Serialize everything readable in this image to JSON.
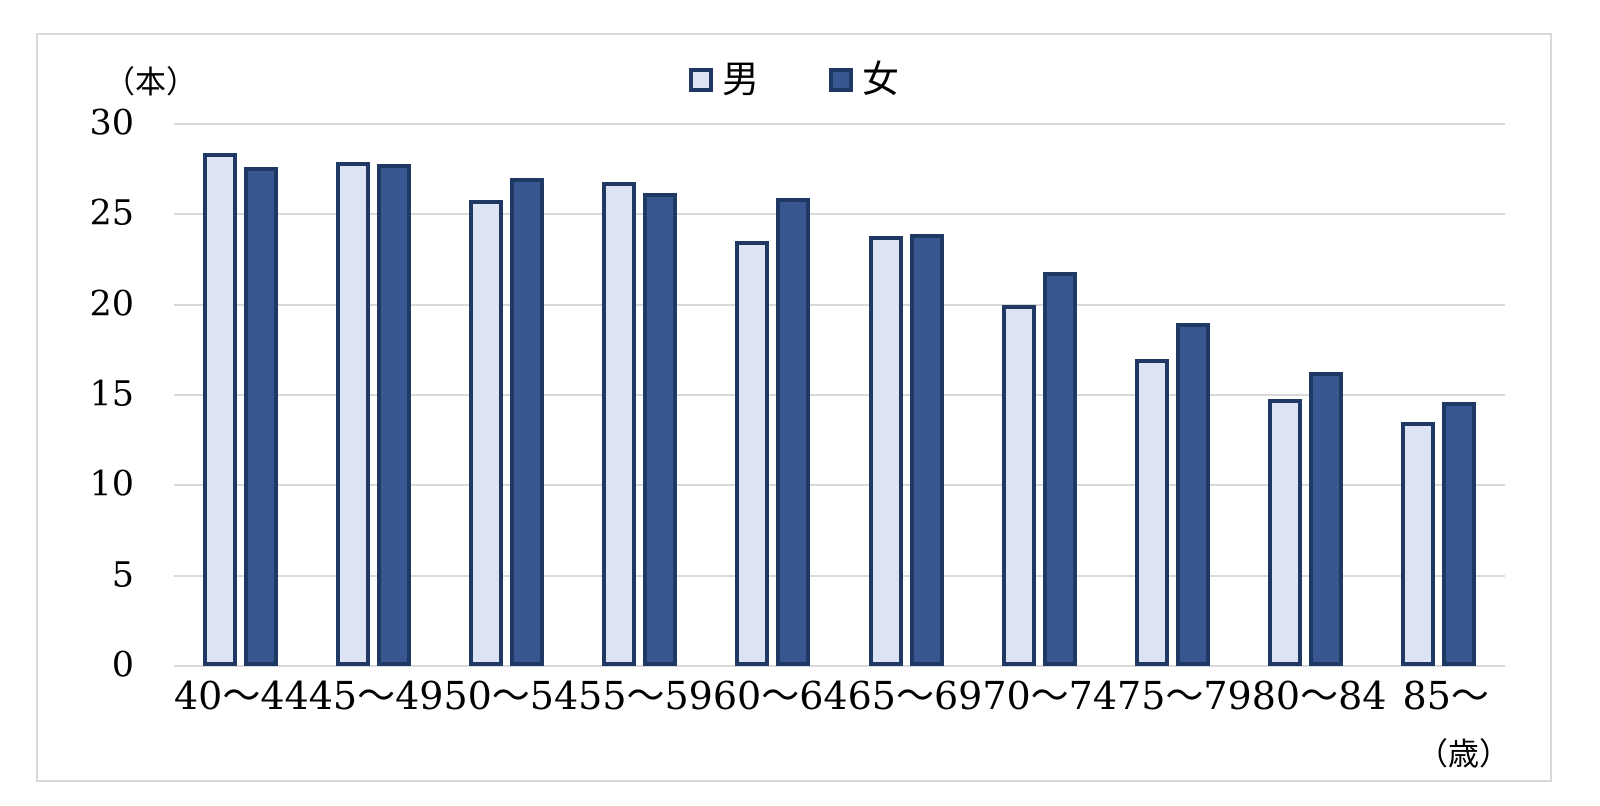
{
  "chart_data": {
    "type": "bar",
    "title": "",
    "y_unit_label": "（本）",
    "x_unit_label": "（歳）",
    "categories": [
      "40〜44",
      "45〜49",
      "50〜54",
      "55〜59",
      "60〜64",
      "65〜69",
      "70〜74",
      "75〜79",
      "80〜84",
      "85〜"
    ],
    "series": [
      {
        "name": "男",
        "key": "male",
        "fill": "#dce3f2",
        "border": "#1f3864",
        "values": [
          28.4,
          27.9,
          25.8,
          26.8,
          23.5,
          23.8,
          20.0,
          17.0,
          14.8,
          13.5
        ]
      },
      {
        "name": "女",
        "key": "female",
        "fill": "#38568f",
        "border": "#1f3864",
        "values": [
          27.6,
          27.8,
          27.0,
          26.2,
          25.9,
          23.9,
          21.8,
          19.0,
          16.3,
          14.6
        ]
      }
    ],
    "y_ticks": [
      0,
      5,
      10,
      15,
      20,
      25,
      30
    ],
    "ylim": [
      0,
      30
    ],
    "grid": true,
    "legend_position": "top-center",
    "colors": {
      "gridline": "#d9d9d9",
      "frame_border": "#d9d9d9",
      "background": "#ffffff",
      "text": "#000000"
    }
  }
}
